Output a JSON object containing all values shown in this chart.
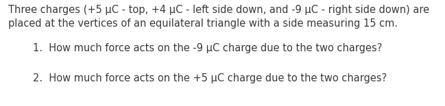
{
  "bg_color": "#ffffff",
  "para_text": "Three charges (+5 μC - top, +4 μC - left side down, and -9 μC - right side down) are\nplaced at the vertices of an equilateral triangle with a side measuring 15 cm.",
  "q1_text": "1.  How much force acts on the -9 μC charge due to the two charges?",
  "q2_text": "2.  How much force acts on the +5 μC charge due to the two charges?",
  "fontsize_para": 10.5,
  "fontsize_q": 10.5,
  "text_color": "#3a3a3a",
  "font_family": "DejaVu Sans",
  "fig_width": 6.49,
  "fig_height": 1.55,
  "dpi": 100
}
